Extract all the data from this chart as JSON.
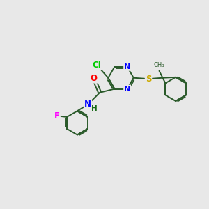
{
  "background_color": "#e8e8e8",
  "bond_color": "#2a5a2a",
  "atom_colors": {
    "Cl": "#00cc00",
    "F": "#ff00ff",
    "O": "#ff0000",
    "N": "#0000ff",
    "S": "#ccaa00",
    "C": "#2a5a2a",
    "H": "#1a6a1a"
  },
  "figsize": [
    3.0,
    3.0
  ],
  "dpi": 100
}
